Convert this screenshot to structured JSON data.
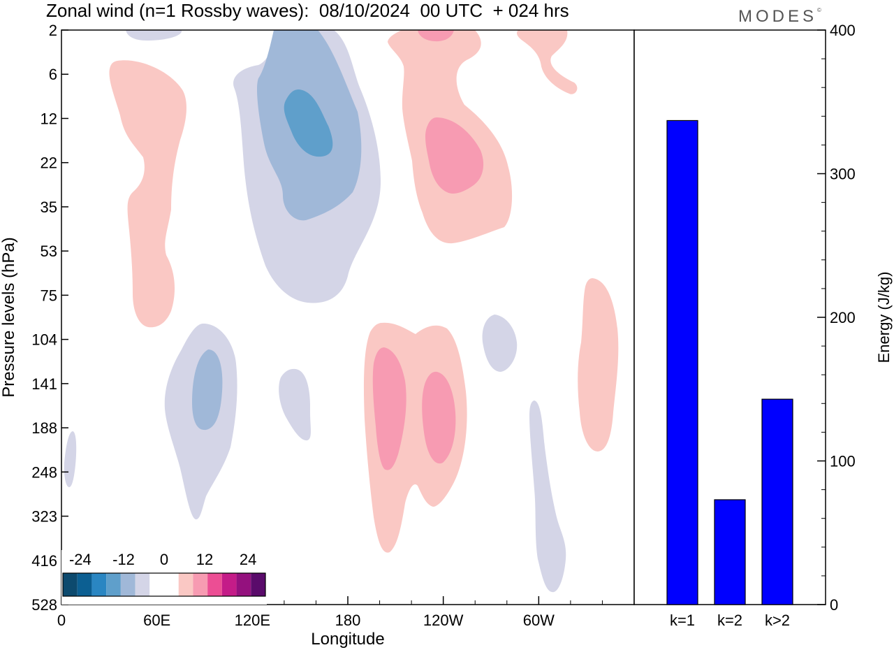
{
  "title": "Zonal wind (n=1 Rossby waves):  08/10/2024  00 UTC  + 024 hrs",
  "logo": "MODES",
  "logo_mark": "©",
  "colors": {
    "neg": [
      "#0d4a6e",
      "#0c5f92",
      "#2a86c2",
      "#5f9fcb",
      "#a0b8d8",
      "#d4d5e7"
    ],
    "zero": "#ffffff",
    "pos": [
      "#fac8c4",
      "#f79bb2",
      "#ec4e94",
      "#c41c88",
      "#94117e",
      "#5a0b6b"
    ],
    "bar": "#0000ff"
  },
  "chart_data": [
    {
      "type": "heatmap",
      "title": "Zonal wind (n=1 Rossby waves):  08/10/2024  00 UTC  + 024 hrs",
      "xlabel": "Longitude",
      "ylabel": "Pressure levels (hPa)",
      "x_ticks": [
        "0",
        "60E",
        "120E",
        "180",
        "120W",
        "60W"
      ],
      "y_ticks": [
        "2",
        "6",
        "12",
        "22",
        "35",
        "53",
        "75",
        "104",
        "141",
        "188",
        "248",
        "323",
        "416",
        "528"
      ],
      "colorbar_labels": [
        "-24",
        "-12",
        "0",
        "12",
        "24"
      ],
      "colorbar_levels": [
        -30,
        -25,
        -20,
        -15,
        -10,
        -5,
        0,
        5,
        10,
        15,
        20,
        25,
        30
      ],
      "xlim": [
        0,
        360
      ],
      "contours": [
        {
          "level": -5,
          "center_lon": 136,
          "top_hPa": 2,
          "bottom_hPa": 75
        },
        {
          "level": -10,
          "center_lon": 136,
          "top_hPa": 2,
          "bottom_hPa": 35
        },
        {
          "level": -15,
          "center_lon": 145,
          "top_hPa": 8,
          "bottom_hPa": 17
        },
        {
          "level": 5,
          "center_lon": 52,
          "top_hPa": 5,
          "bottom_hPa": 90
        },
        {
          "level": 5,
          "center_lon": 233,
          "top_hPa": 2,
          "bottom_hPa": 50
        },
        {
          "level": 10,
          "center_lon": 236,
          "top_hPa": 14,
          "bottom_hPa": 28
        },
        {
          "level": 10,
          "center_lon": 226,
          "top_hPa": 2,
          "bottom_hPa": 3
        },
        {
          "level": 5,
          "center_lon": 309,
          "top_hPa": 2,
          "bottom_hPa": 8
        },
        {
          "level": -5,
          "center_lon": 87,
          "top_hPa": 100,
          "bottom_hPa": 323
        },
        {
          "level": -10,
          "center_lon": 91,
          "top_hPa": 120,
          "bottom_hPa": 175
        },
        {
          "level": -5,
          "center_lon": 146,
          "top_hPa": 115,
          "bottom_hPa": 190
        },
        {
          "level": 5,
          "center_lon": 224,
          "top_hPa": 100,
          "bottom_hPa": 416
        },
        {
          "level": 10,
          "center_lon": 200,
          "top_hPa": 115,
          "bottom_hPa": 230
        },
        {
          "level": 10,
          "center_lon": 231,
          "top_hPa": 125,
          "bottom_hPa": 230
        },
        {
          "level": -5,
          "center_lon": 281,
          "top_hPa": 100,
          "bottom_hPa": 135
        },
        {
          "level": -5,
          "center_lon": 302,
          "top_hPa": 170,
          "bottom_hPa": 528
        },
        {
          "level": 5,
          "center_lon": 343,
          "top_hPa": 85,
          "bottom_hPa": 215
        },
        {
          "level": -5,
          "center_lon": 5,
          "top_hPa": 200,
          "bottom_hPa": 270
        }
      ]
    },
    {
      "type": "bar",
      "categories": [
        "k=1",
        "k=2",
        "k>2"
      ],
      "values": [
        337,
        73,
        143
      ],
      "xlabel": "",
      "ylabel": "Energy (J/kg)",
      "y_ticks": [
        "0",
        "100",
        "200",
        "300",
        "400"
      ],
      "ylim": [
        0,
        400
      ]
    }
  ]
}
